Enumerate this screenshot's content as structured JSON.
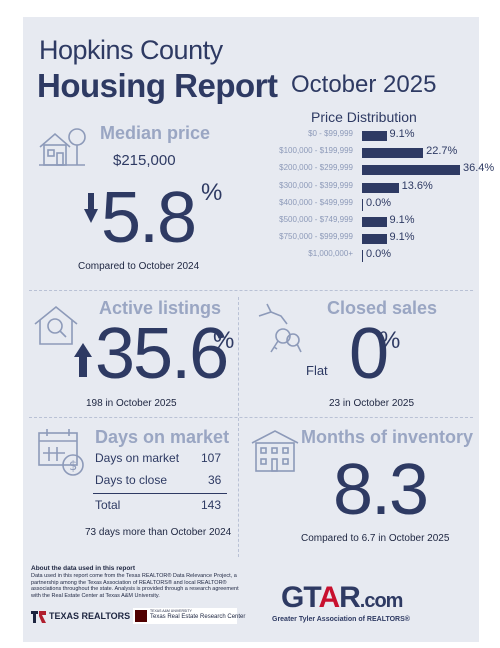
{
  "header": {
    "county": "Hopkins County",
    "report": "Housing Report",
    "month": "October 2025"
  },
  "price_distribution": {
    "title": "Price Distribution",
    "rows": [
      {
        "label": "$0 - $99,999",
        "value": "9.1%",
        "pct": 9.1
      },
      {
        "label": "$100,000 - $199,999",
        "value": "22.7%",
        "pct": 22.7
      },
      {
        "label": "$200,000 - $299,999",
        "value": "36.4%",
        "pct": 36.4
      },
      {
        "label": "$300,000 - $399,999",
        "value": "13.6%",
        "pct": 13.6
      },
      {
        "label": "$400,000 - $499,999",
        "value": "0.0%",
        "pct": 0
      },
      {
        "label": "$500,000 - $749,999",
        "value": "9.1%",
        "pct": 9.1
      },
      {
        "label": "$750,000 - $999,999",
        "value": "9.1%",
        "pct": 9.1
      },
      {
        "label": "$1,000,000+",
        "value": "0.0%",
        "pct": 0
      }
    ]
  },
  "median_price": {
    "title": "Median price",
    "price": "$215,000",
    "change": "5.8",
    "pct_sign": "%",
    "direction": "down",
    "note": "Compared to October 2024"
  },
  "active_listings": {
    "title": "Active listings",
    "change": "35.6",
    "pct_sign": "%",
    "direction": "up",
    "note": "198 in October 2025"
  },
  "closed_sales": {
    "title": "Closed sales",
    "flat_label": "Flat",
    "change": "0",
    "pct_sign": "%",
    "note": "23 in October 2025"
  },
  "days_on_market": {
    "title": "Days on market",
    "rows": [
      {
        "label": "Days on market",
        "value": "107"
      },
      {
        "label": "Days to close",
        "value": "36"
      }
    ],
    "total_label": "Total",
    "total_value": "143",
    "note": "73 days more than October 2024"
  },
  "months_inventory": {
    "title": "Months of inventory",
    "value": "8.3",
    "note": "Compared to 6.7 in October 2025"
  },
  "footer": {
    "heading": "About the data used in this report",
    "text": "Data used in this report come from the Texas REALTOR® Data Relevance Project, a partnership among the Texas Association of REALTORS® and local REALTOR® associations throughout the state. Analysis is provided through a research agreement with the Real Estate Center at Texas A&M University.",
    "texas_realtors": "TEXAS REALTORS",
    "tamu_small": "TEXAS A&M UNIVERSITY",
    "tamu_name": "Texas Real Estate Research Center",
    "gtar_logo": "GTAR.com",
    "gtar_tagline": "Greater Tyler Association of REALTORS®"
  },
  "colors": {
    "navy": "#2e3a63",
    "light": "#8d9ab9",
    "background": "#e7eaf1",
    "gtar_red": "#c8102e",
    "tr_red": "#b01f2e"
  },
  "icons": [
    "house-tree-icon",
    "house-magnifier-icon",
    "hand-keys-icon",
    "calendar-dollar-icon",
    "building-icon",
    "down-arrow-icon",
    "up-arrow-icon"
  ]
}
